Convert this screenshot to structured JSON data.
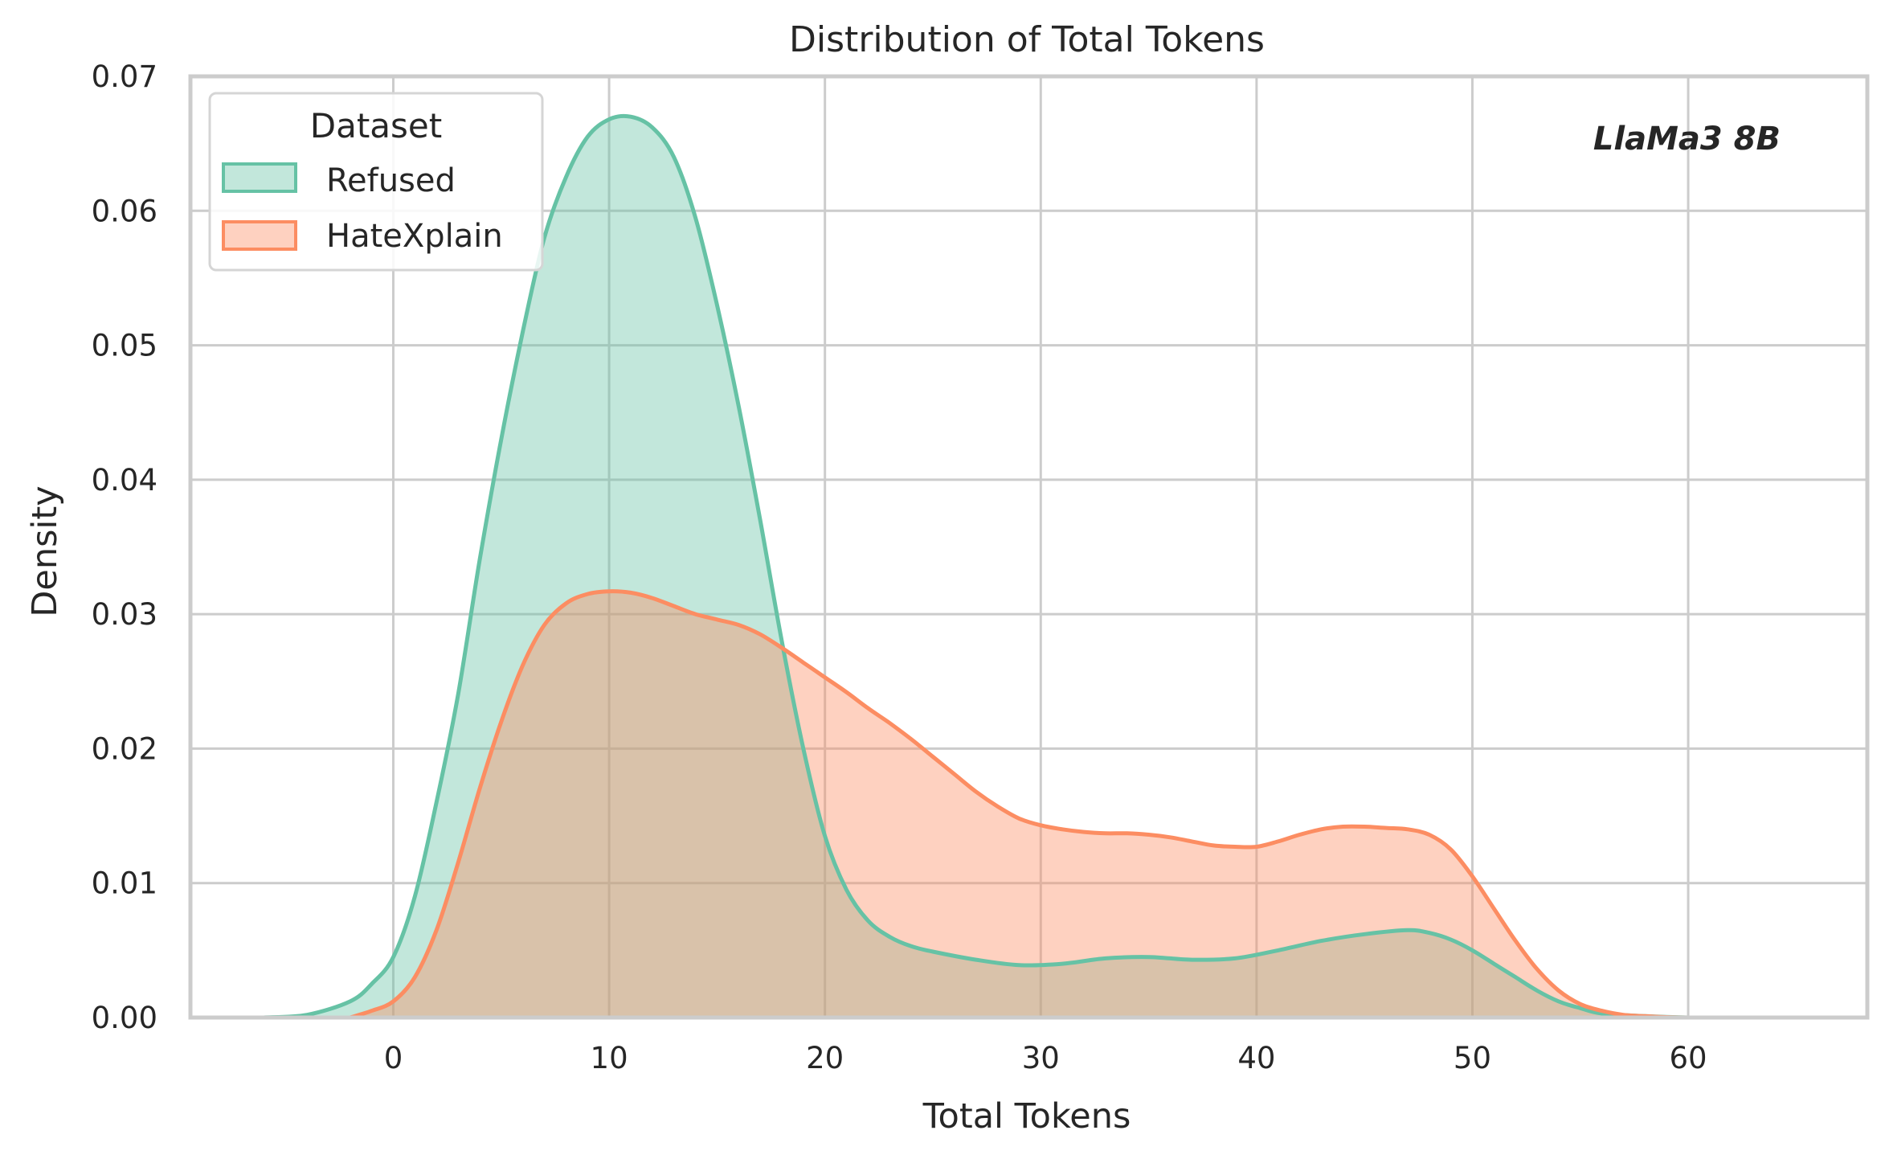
{
  "chart_data": {
    "type": "area",
    "title": "Distribution of Total Tokens",
    "xlabel": "Total Tokens",
    "ylabel": "Density",
    "xlim": [
      -9.4,
      68.3
    ],
    "ylim": [
      0,
      0.07
    ],
    "xticks": [
      0,
      10,
      20,
      30,
      40,
      50,
      60
    ],
    "yticks": [
      0.0,
      0.01,
      0.02,
      0.03,
      0.04,
      0.05,
      0.06,
      0.07
    ],
    "xtick_labels": [
      "0",
      "10",
      "20",
      "30",
      "40",
      "50",
      "60"
    ],
    "ytick_labels": [
      "0.00",
      "0.01",
      "0.02",
      "0.03",
      "0.04",
      "0.05",
      "0.06",
      "0.07"
    ],
    "grid": true,
    "legend": {
      "title": "Dataset",
      "placement": "top-left"
    },
    "annotation": "LlaMa3 8B",
    "series": [
      {
        "name": "Refused",
        "color": "#66c2a5",
        "points": [
          [
            -6,
            0.0
          ],
          [
            -4,
            0.0002
          ],
          [
            -2,
            0.0012
          ],
          [
            -1,
            0.0025
          ],
          [
            0,
            0.0045
          ],
          [
            1,
            0.009
          ],
          [
            2,
            0.016
          ],
          [
            3,
            0.024
          ],
          [
            4,
            0.034
          ],
          [
            5,
            0.043
          ],
          [
            6,
            0.051
          ],
          [
            7,
            0.058
          ],
          [
            8,
            0.0625
          ],
          [
            9,
            0.0655
          ],
          [
            10,
            0.0668
          ],
          [
            11,
            0.067
          ],
          [
            12,
            0.0662
          ],
          [
            13,
            0.064
          ],
          [
            14,
            0.0595
          ],
          [
            15,
            0.053
          ],
          [
            16,
            0.0455
          ],
          [
            17,
            0.037
          ],
          [
            18,
            0.028
          ],
          [
            19,
            0.02
          ],
          [
            20,
            0.0135
          ],
          [
            21,
            0.0095
          ],
          [
            22,
            0.0072
          ],
          [
            23,
            0.006
          ],
          [
            24,
            0.0053
          ],
          [
            25,
            0.0049
          ],
          [
            27,
            0.0043
          ],
          [
            29,
            0.0039
          ],
          [
            31,
            0.004
          ],
          [
            33,
            0.0044
          ],
          [
            35,
            0.0045
          ],
          [
            37,
            0.0043
          ],
          [
            39,
            0.0044
          ],
          [
            41,
            0.005
          ],
          [
            43,
            0.0057
          ],
          [
            45,
            0.0062
          ],
          [
            47,
            0.0065
          ],
          [
            48,
            0.0063
          ],
          [
            49,
            0.0058
          ],
          [
            50,
            0.005
          ],
          [
            51,
            0.004
          ],
          [
            52,
            0.003
          ],
          [
            53,
            0.002
          ],
          [
            54,
            0.0012
          ],
          [
            55,
            0.0007
          ],
          [
            56,
            0.0003
          ],
          [
            58,
            0.0001
          ],
          [
            60,
            0.0
          ],
          [
            62,
            0.0
          ]
        ]
      },
      {
        "name": "HateXplain",
        "color": "#fc8d62",
        "points": [
          [
            -2,
            0.0
          ],
          [
            -1,
            0.0005
          ],
          [
            0,
            0.0012
          ],
          [
            1,
            0.003
          ],
          [
            2,
            0.0065
          ],
          [
            3,
            0.0115
          ],
          [
            4,
            0.017
          ],
          [
            5,
            0.022
          ],
          [
            6,
            0.0262
          ],
          [
            7,
            0.0292
          ],
          [
            8,
            0.0308
          ],
          [
            9,
            0.0315
          ],
          [
            10,
            0.0317
          ],
          [
            11,
            0.0316
          ],
          [
            12,
            0.0312
          ],
          [
            13,
            0.0306
          ],
          [
            14,
            0.03
          ],
          [
            15,
            0.0296
          ],
          [
            16,
            0.0292
          ],
          [
            17,
            0.0285
          ],
          [
            18,
            0.0275
          ],
          [
            19,
            0.0264
          ],
          [
            20,
            0.0253
          ],
          [
            21,
            0.0242
          ],
          [
            22,
            0.023
          ],
          [
            23,
            0.0219
          ],
          [
            24,
            0.0207
          ],
          [
            25,
            0.0194
          ],
          [
            26,
            0.0181
          ],
          [
            27,
            0.0168
          ],
          [
            28,
            0.0157
          ],
          [
            29,
            0.0148
          ],
          [
            30,
            0.0143
          ],
          [
            31,
            0.014
          ],
          [
            32,
            0.0138
          ],
          [
            33,
            0.0137
          ],
          [
            34,
            0.0137
          ],
          [
            35,
            0.0136
          ],
          [
            36,
            0.0134
          ],
          [
            37,
            0.0131
          ],
          [
            38,
            0.0128
          ],
          [
            39,
            0.0127
          ],
          [
            40,
            0.0127
          ],
          [
            41,
            0.0131
          ],
          [
            42,
            0.0136
          ],
          [
            43,
            0.014
          ],
          [
            44,
            0.0142
          ],
          [
            45,
            0.0142
          ],
          [
            46,
            0.0141
          ],
          [
            47,
            0.014
          ],
          [
            48,
            0.0136
          ],
          [
            49,
            0.0125
          ],
          [
            50,
            0.0105
          ],
          [
            51,
            0.0081
          ],
          [
            52,
            0.0057
          ],
          [
            53,
            0.0036
          ],
          [
            54,
            0.002
          ],
          [
            55,
            0.001
          ],
          [
            56,
            0.0005
          ],
          [
            57,
            0.0002
          ],
          [
            58,
            0.0001
          ],
          [
            60,
            0.0
          ],
          [
            65,
            0.0
          ]
        ]
      }
    ]
  }
}
